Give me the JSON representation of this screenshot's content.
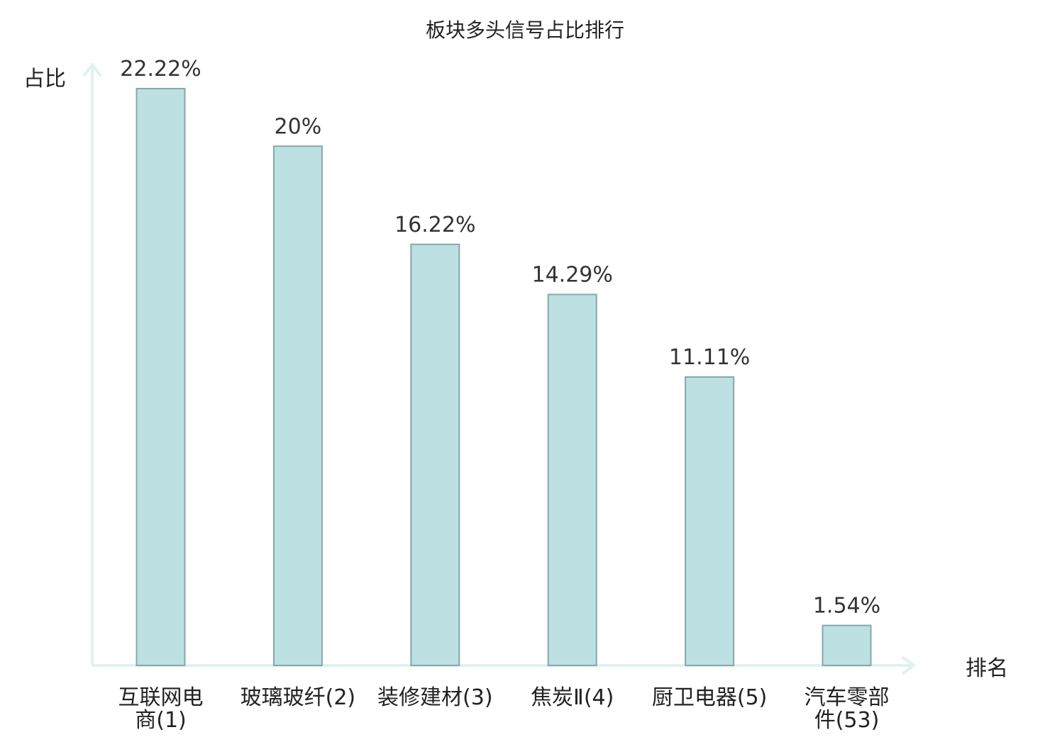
{
  "chart_data": {
    "type": "bar",
    "title": "板块多头信号占比排行",
    "ylabel": "占比",
    "xlabel": "排名",
    "categories": [
      [
        "互联网电",
        "商(1)"
      ],
      [
        "玻璃玻纤(2)"
      ],
      [
        "装修建材(3)"
      ],
      [
        "焦炭Ⅱ(4)"
      ],
      [
        "厨卫电器(5)"
      ],
      [
        "汽车零部",
        "件(53)"
      ]
    ],
    "values": [
      22.22,
      20,
      16.22,
      14.29,
      11.11,
      1.54
    ],
    "value_labels": [
      "22.22%",
      "20%",
      "16.22%",
      "14.29%",
      "11.11%",
      "1.54%"
    ],
    "highlight_index": 5,
    "ylim": [
      0,
      23.12
    ],
    "grid": false,
    "colors": {
      "bar_fill": "#bde0e2",
      "bar_stroke": "#86a8aa",
      "axis": "#dff2ef",
      "text": "#222222",
      "value_text": "#333333",
      "highlight": "#e8141c"
    }
  }
}
